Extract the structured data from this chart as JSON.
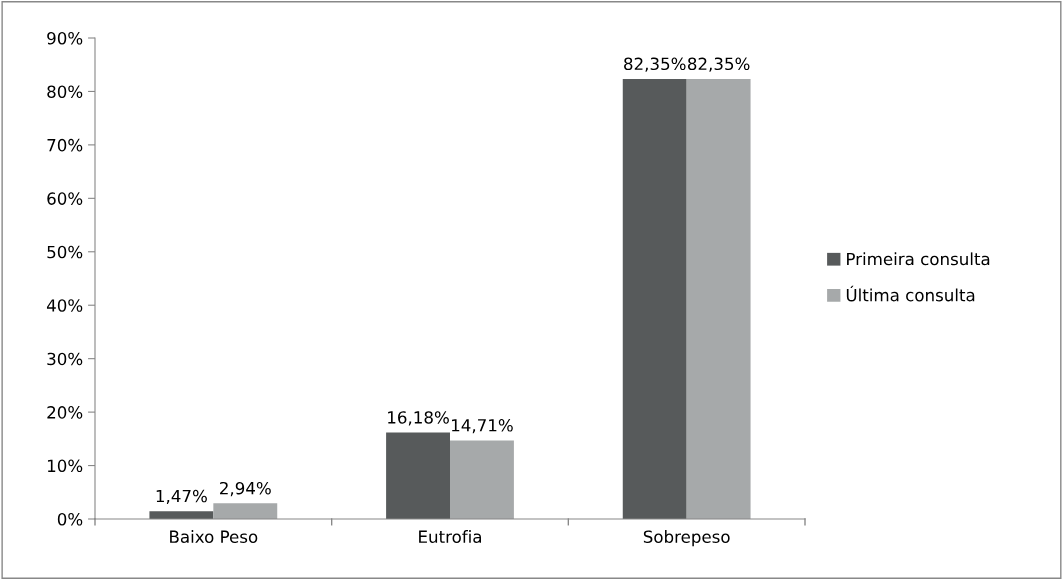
{
  "chart_data": {
    "type": "bar",
    "categories": [
      "Baixo Peso",
      "Eutrofia",
      "Sobrepeso"
    ],
    "series": [
      {
        "name": "Primeira consulta",
        "color": "#575a5b",
        "values": [
          1.47,
          16.18,
          82.35
        ],
        "value_labels": [
          "1,47%",
          "16,18%",
          "82,35%"
        ]
      },
      {
        "name": "Última consulta",
        "color": "#a6a9aa",
        "values": [
          2.94,
          14.71,
          82.35
        ],
        "value_labels": [
          "2,94%",
          "14,71%",
          "82,35%"
        ]
      }
    ],
    "ylim": [
      0,
      90
    ],
    "yticks": [
      {
        "value": 0,
        "label": "0%"
      },
      {
        "value": 10,
        "label": "10%"
      },
      {
        "value": 20,
        "label": "20%"
      },
      {
        "value": 30,
        "label": "30%"
      },
      {
        "value": 40,
        "label": "40%"
      },
      {
        "value": 50,
        "label": "50%"
      },
      {
        "value": 60,
        "label": "60%"
      },
      {
        "value": 70,
        "label": "70%"
      },
      {
        "value": 80,
        "label": "80%"
      },
      {
        "value": 90,
        "label": "90%"
      }
    ],
    "legend": "right",
    "grid": false
  }
}
